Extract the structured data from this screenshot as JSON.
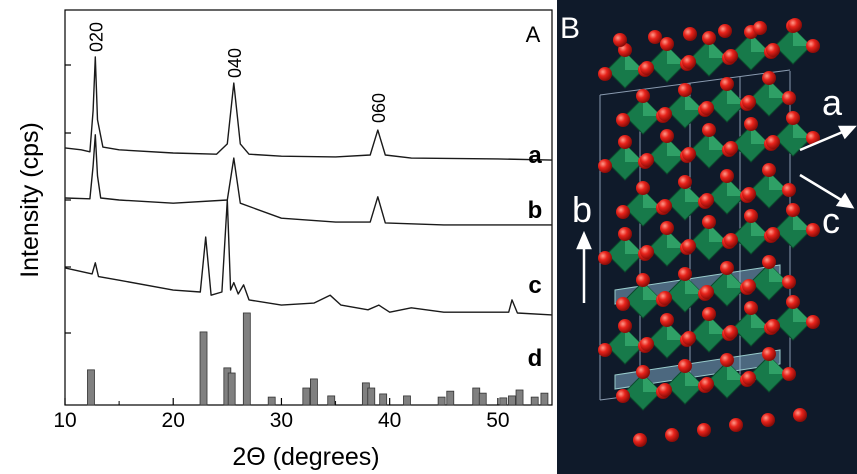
{
  "chart_data": {
    "type": "line",
    "panel_label": "A",
    "xlabel": "2Θ (degrees)",
    "ylabel": "Intensity (cps)",
    "xlim": [
      10,
      55
    ],
    "ylim": [
      0,
      100
    ],
    "xticks": [
      10,
      20,
      30,
      40,
      50
    ],
    "series": [
      {
        "name": "a",
        "color": "#1a1a1a",
        "x": [
          10,
          11.5,
          12.3,
          12.6,
          12.8,
          13.0,
          13.5,
          15,
          20,
          24,
          25.0,
          25.6,
          26.2,
          27,
          30,
          35,
          38.2,
          38.9,
          39.6,
          42,
          50,
          55
        ],
        "values": [
          65.1,
          64.6,
          64.1,
          74.5,
          88.1,
          72.2,
          65.3,
          64.6,
          63.8,
          63.5,
          66.1,
          81.5,
          66.1,
          63.5,
          63.0,
          62.8,
          63.3,
          69.6,
          63.3,
          62.5,
          62.3,
          62.0
        ]
      },
      {
        "name": "b",
        "color": "#1a1a1a",
        "x": [
          10,
          12.3,
          12.6,
          12.8,
          13.0,
          13.3,
          15,
          20,
          25.0,
          25.6,
          26.2,
          30,
          35,
          38.2,
          38.9,
          39.6,
          45,
          55
        ],
        "values": [
          52.4,
          52.2,
          60.5,
          68.4,
          58.0,
          52.4,
          51.9,
          51.1,
          51.9,
          62.5,
          51.1,
          47.3,
          46.3,
          46.3,
          52.7,
          46.1,
          45.6,
          45.6
        ]
      },
      {
        "name": "c",
        "color": "#1a1a1a",
        "x": [
          10,
          12.5,
          12.8,
          13.1,
          15,
          20,
          22.5,
          23.0,
          23.5,
          24.5,
          25.0,
          25.3,
          25.6,
          26.0,
          26.5,
          27,
          30,
          33,
          34.5,
          35.5,
          38,
          39,
          40,
          42,
          45,
          51.0,
          51.3,
          51.8,
          55
        ],
        "values": [
          34.7,
          33.2,
          36.0,
          32.5,
          31.6,
          29.1,
          28.6,
          42.5,
          27.8,
          28.6,
          51.9,
          29.1,
          31.0,
          28.1,
          30.4,
          26.6,
          25.3,
          25.8,
          27.8,
          25.3,
          24.1,
          25.3,
          23.5,
          24.6,
          23.5,
          23.5,
          26.6,
          23.3,
          22.8
        ]
      },
      {
        "name": "d",
        "color": "#808080",
        "type": "bar",
        "x": [
          12.4,
          22.8,
          25.0,
          25.4,
          26.8,
          29.1,
          32.3,
          33.0,
          34.6,
          37.8,
          38.3,
          39.4,
          41.6,
          44.8,
          45.6,
          48.0,
          48.6,
          50.5,
          51.3,
          52.0,
          53.4,
          54.3
        ],
        "values": [
          8.9,
          18.5,
          9.4,
          8.1,
          23.3,
          2.0,
          4.3,
          6.6,
          2.3,
          5.6,
          4.3,
          2.8,
          2.3,
          2.0,
          3.5,
          4.3,
          3.0,
          1.8,
          2.3,
          3.8,
          2.0,
          3.0
        ]
      }
    ],
    "annotations": [
      {
        "text": "020",
        "x": 12.8
      },
      {
        "text": "040",
        "x": 25.6
      },
      {
        "text": "060",
        "x": 38.9
      }
    ]
  },
  "structure_panel": {
    "label": "B",
    "axis_labels": [
      "a",
      "b",
      "c"
    ]
  }
}
